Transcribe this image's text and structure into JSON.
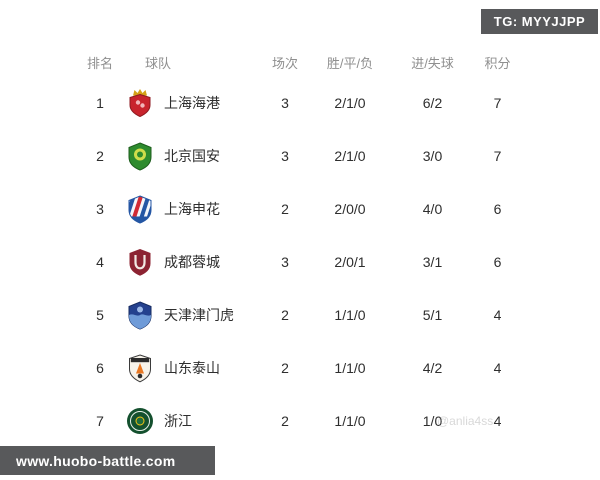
{
  "tg_badge": {
    "label": "TG: MYYJJPP",
    "bg": "#58595b",
    "text_color": "#ffffff"
  },
  "footer_badge": {
    "label": "www.huobo-battle.com",
    "bg": "#58595b",
    "text_color": "#ffffff"
  },
  "watermark": {
    "label": "@anlia4ss"
  },
  "colors": {
    "background": "#ffffff",
    "badge_bg": "#58595b",
    "header_text": "#8f8f8f",
    "body_text": "#2e2e2e"
  },
  "table": {
    "headers": [
      "排名",
      "球队",
      "场次",
      "胜/平/负",
      "进/失球",
      "积分"
    ],
    "rows": [
      {
        "rank": "1",
        "team": "上海海港",
        "logo": "shanghai-port",
        "played": "3",
        "wdl": "2/1/0",
        "goals": "6/2",
        "points": "7"
      },
      {
        "rank": "2",
        "team": "北京国安",
        "logo": "beijing-guoan",
        "played": "3",
        "wdl": "2/1/0",
        "goals": "3/0",
        "points": "7"
      },
      {
        "rank": "3",
        "team": "上海申花",
        "logo": "shanghai-shenhua",
        "played": "2",
        "wdl": "2/0/0",
        "goals": "4/0",
        "points": "6"
      },
      {
        "rank": "4",
        "team": "成都蓉城",
        "logo": "chengdu-rongcheng",
        "played": "3",
        "wdl": "2/0/1",
        "goals": "3/1",
        "points": "6"
      },
      {
        "rank": "5",
        "team": "天津津门虎",
        "logo": "tianjin-jinmen-tiger",
        "played": "2",
        "wdl": "1/1/0",
        "goals": "5/1",
        "points": "4"
      },
      {
        "rank": "6",
        "team": "山东泰山",
        "logo": "shandong-taishan",
        "played": "2",
        "wdl": "1/1/0",
        "goals": "4/2",
        "points": "4"
      },
      {
        "rank": "7",
        "team": "浙江",
        "logo": "zhejiang",
        "played": "2",
        "wdl": "1/1/0",
        "goals": "1/0",
        "points": "4"
      }
    ]
  }
}
